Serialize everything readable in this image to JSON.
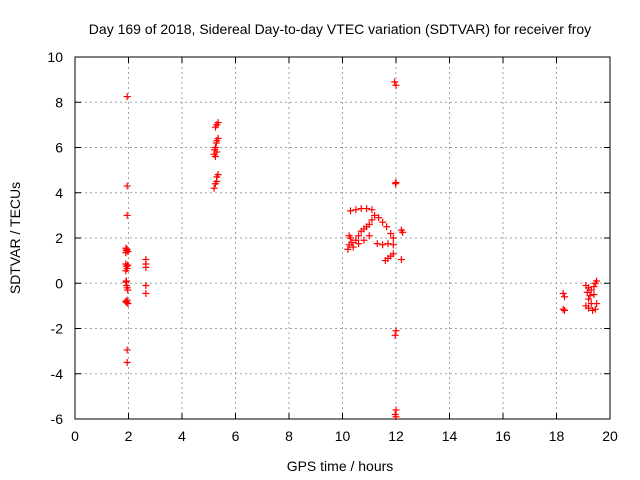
{
  "chart_data": {
    "type": "scatter",
    "title": "Day 169 of 2018, Sidereal Day-to-day VTEC variation (SDTVAR) for receiver froy",
    "xlabel": "GPS time / hours",
    "ylabel": "SDTVAR / TECUs",
    "xlim": [
      0,
      20
    ],
    "ylim": [
      -6,
      10
    ],
    "xticks": [
      0,
      2,
      4,
      6,
      8,
      10,
      12,
      14,
      16,
      18,
      20
    ],
    "yticks": [
      -6,
      -4,
      -2,
      0,
      2,
      4,
      6,
      8,
      10
    ],
    "grid": true,
    "marker": "+",
    "color": "#ff0000",
    "series": [
      {
        "name": "SDTVAR",
        "points": [
          [
            1.95,
            8.25
          ],
          [
            1.95,
            4.3
          ],
          [
            1.95,
            3.0
          ],
          [
            1.9,
            1.55
          ],
          [
            1.92,
            1.45
          ],
          [
            1.95,
            1.5
          ],
          [
            1.98,
            1.4
          ],
          [
            1.9,
            1.35
          ],
          [
            1.9,
            0.85
          ],
          [
            1.93,
            0.75
          ],
          [
            1.95,
            0.65
          ],
          [
            1.97,
            0.8
          ],
          [
            1.9,
            0.55
          ],
          [
            1.9,
            0.05
          ],
          [
            1.93,
            -0.1
          ],
          [
            1.95,
            -0.2
          ],
          [
            1.97,
            -0.3
          ],
          [
            1.92,
            0.1
          ],
          [
            1.9,
            -0.8
          ],
          [
            1.93,
            -0.85
          ],
          [
            1.95,
            -0.75
          ],
          [
            1.98,
            -0.9
          ],
          [
            1.95,
            -2.95
          ],
          [
            1.95,
            -3.5
          ],
          [
            2.65,
            1.05
          ],
          [
            2.65,
            0.7
          ],
          [
            2.65,
            0.85
          ],
          [
            2.65,
            -0.1
          ],
          [
            2.65,
            -0.45
          ],
          [
            5.2,
            4.2
          ],
          [
            5.25,
            4.4
          ],
          [
            5.3,
            4.7
          ],
          [
            5.35,
            4.8
          ],
          [
            5.3,
            4.5
          ],
          [
            5.2,
            5.7
          ],
          [
            5.22,
            5.9
          ],
          [
            5.25,
            6.0
          ],
          [
            5.28,
            6.2
          ],
          [
            5.3,
            6.3
          ],
          [
            5.35,
            6.4
          ],
          [
            5.3,
            5.8
          ],
          [
            5.25,
            5.6
          ],
          [
            5.25,
            6.9
          ],
          [
            5.3,
            7.0
          ],
          [
            5.35,
            7.1
          ],
          [
            10.2,
            1.5
          ],
          [
            10.25,
            1.7
          ],
          [
            10.3,
            2.0
          ],
          [
            10.35,
            1.8
          ],
          [
            10.4,
            1.6
          ],
          [
            10.25,
            2.1
          ],
          [
            10.5,
            1.9
          ],
          [
            10.6,
            2.1
          ],
          [
            10.7,
            2.3
          ],
          [
            10.8,
            2.4
          ],
          [
            10.9,
            2.5
          ],
          [
            11.0,
            2.6
          ],
          [
            11.1,
            2.8
          ],
          [
            10.6,
            1.75
          ],
          [
            10.8,
            1.9
          ],
          [
            11.0,
            2.1
          ],
          [
            10.3,
            3.2
          ],
          [
            10.5,
            3.25
          ],
          [
            10.7,
            3.3
          ],
          [
            10.9,
            3.3
          ],
          [
            11.1,
            3.25
          ],
          [
            11.2,
            3.0
          ],
          [
            11.35,
            2.9
          ],
          [
            11.5,
            2.7
          ],
          [
            11.65,
            2.5
          ],
          [
            11.8,
            2.2
          ],
          [
            11.9,
            2.0
          ],
          [
            11.3,
            1.75
          ],
          [
            11.5,
            1.7
          ],
          [
            11.7,
            1.75
          ],
          [
            11.9,
            1.7
          ],
          [
            11.6,
            1.0
          ],
          [
            11.7,
            1.1
          ],
          [
            11.8,
            1.2
          ],
          [
            11.9,
            1.3
          ],
          [
            11.95,
            8.9
          ],
          [
            12.0,
            8.75
          ],
          [
            12.0,
            4.45
          ],
          [
            11.98,
            4.4
          ],
          [
            12.0,
            -2.1
          ],
          [
            11.97,
            -2.3
          ],
          [
            12.0,
            -5.6
          ],
          [
            11.97,
            -5.8
          ],
          [
            12.0,
            -5.9
          ],
          [
            12.2,
            2.35
          ],
          [
            12.25,
            2.25
          ],
          [
            12.2,
            1.05
          ],
          [
            18.25,
            -0.45
          ],
          [
            18.3,
            -0.6
          ],
          [
            18.25,
            -1.15
          ],
          [
            18.3,
            -1.2
          ],
          [
            19.1,
            -0.1
          ],
          [
            19.2,
            -0.2
          ],
          [
            19.3,
            -0.3
          ],
          [
            19.4,
            -0.5
          ],
          [
            19.2,
            -0.7
          ],
          [
            19.3,
            -0.9
          ],
          [
            19.1,
            -1.0
          ],
          [
            19.2,
            -1.1
          ],
          [
            19.35,
            -1.2
          ],
          [
            19.45,
            -1.15
          ],
          [
            19.5,
            -0.9
          ],
          [
            19.45,
            0.0
          ],
          [
            19.5,
            0.1
          ],
          [
            19.4,
            -0.15
          ],
          [
            19.15,
            -0.4
          ],
          [
            19.25,
            -0.55
          ]
        ]
      }
    ]
  }
}
